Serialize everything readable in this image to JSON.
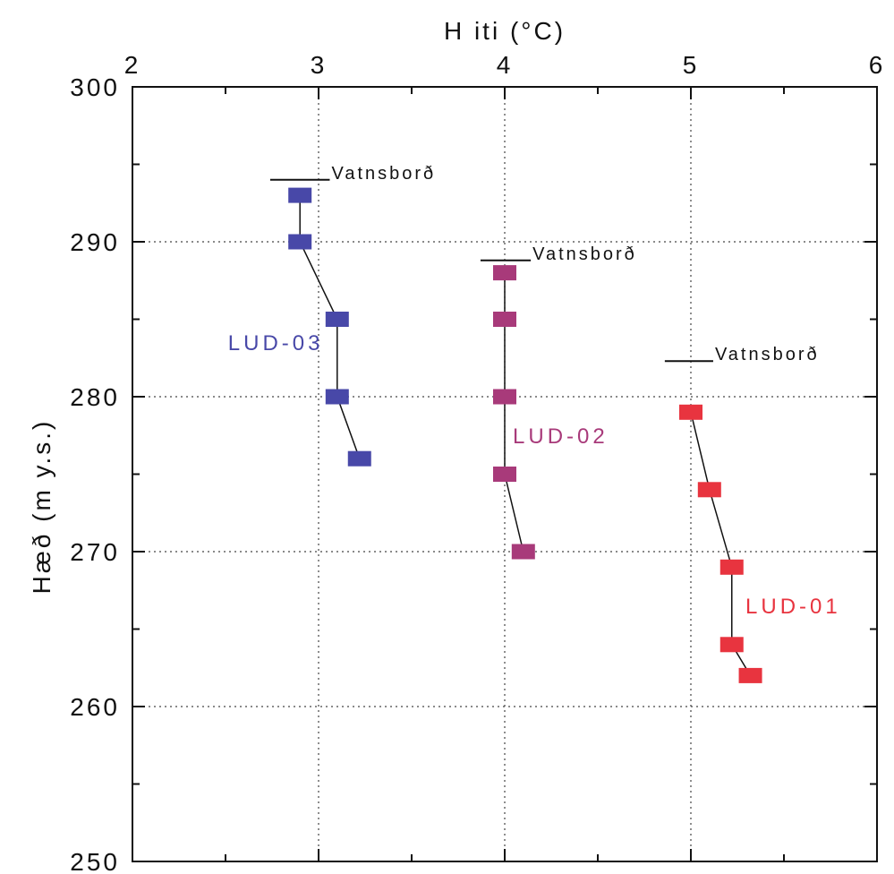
{
  "chart_data": {
    "type": "line",
    "xlabel": "H iti (°C)",
    "ylabel": "Hæð (m y.s.)",
    "xlim": [
      2,
      6
    ],
    "ylim": [
      250,
      300
    ],
    "x_ticks": [
      "2",
      "3",
      "4",
      "5",
      "6"
    ],
    "y_ticks": [
      "250",
      "260",
      "270",
      "280",
      "290",
      "300"
    ],
    "x_axis_position": "top",
    "grid": "dotted, at major ticks",
    "series": [
      {
        "name": "LUD-03",
        "color": "#4848a8",
        "label_pos": {
          "x": 2.77,
          "y": 283
        },
        "points": [
          {
            "x": 2.9,
            "y": 293
          },
          {
            "x": 2.9,
            "y": 290
          },
          {
            "x": 3.1,
            "y": 285
          },
          {
            "x": 3.1,
            "y": 280
          },
          {
            "x": 3.22,
            "y": 276
          }
        ]
      },
      {
        "name": "LUD-02",
        "color": "#a83a7a",
        "label_pos": {
          "x": 4.3,
          "y": 277
        },
        "points": [
          {
            "x": 4.0,
            "y": 288
          },
          {
            "x": 4.0,
            "y": 285
          },
          {
            "x": 4.0,
            "y": 280
          },
          {
            "x": 4.0,
            "y": 275
          },
          {
            "x": 4.1,
            "y": 270
          }
        ]
      },
      {
        "name": "LUD-01",
        "color": "#e8343f",
        "label_pos": {
          "x": 5.55,
          "y": 266
        },
        "points": [
          {
            "x": 5.0,
            "y": 279
          },
          {
            "x": 5.1,
            "y": 274
          },
          {
            "x": 5.22,
            "y": 269
          },
          {
            "x": 5.22,
            "y": 264
          },
          {
            "x": 5.32,
            "y": 262
          }
        ]
      }
    ],
    "annotations": [
      {
        "text": "Vatnsborð",
        "x1": 2.74,
        "x2": 3.06,
        "y": 294
      },
      {
        "text": "Vatnsborð",
        "x1": 3.87,
        "x2": 4.14,
        "y": 288.8
      },
      {
        "text": "Vatnsborð",
        "x1": 4.86,
        "x2": 5.12,
        "y": 282.3
      }
    ]
  }
}
